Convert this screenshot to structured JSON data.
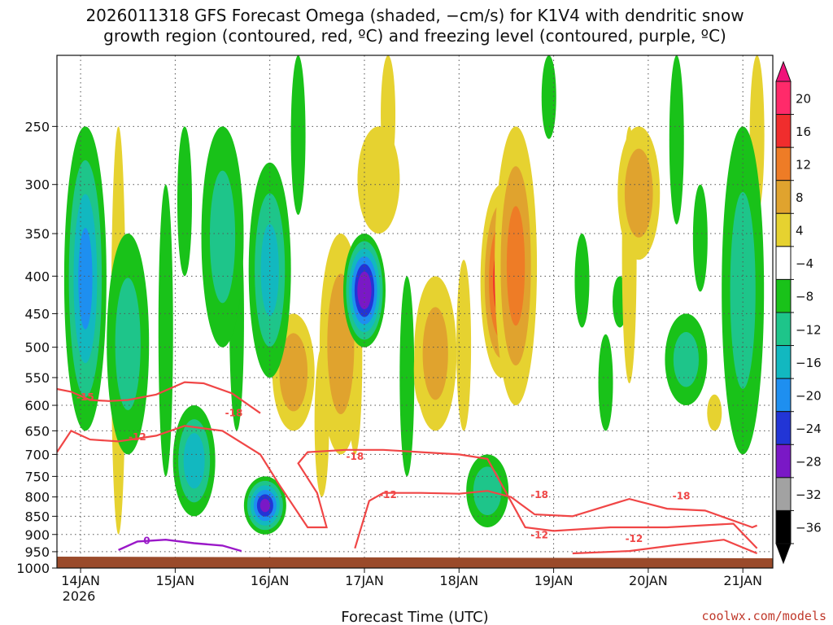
{
  "chart_data": {
    "type": "heatmap",
    "title_line1": "2026011318 GFS Forecast Omega (shaded, −cm/s) for K1V4 with dendritic snow",
    "title_line2": "growth region (contoured, red, ºC) and freezing level (contoured, purple, ºC)",
    "xlabel": "Forecast Time (UTC)",
    "credit": "coolwx.com/models",
    "x_ticks": [
      "14JAN",
      "15JAN",
      "16JAN",
      "17JAN",
      "18JAN",
      "19JAN",
      "20JAN",
      "21JAN"
    ],
    "x_tick_year": "2026",
    "y_scale": "log-pressure",
    "y_ticks": [
      "250",
      "300",
      "350",
      "400",
      "450",
      "500",
      "550",
      "600",
      "650",
      "700",
      "750",
      "800",
      "850",
      "900",
      "950",
      "1000"
    ],
    "ylim": [
      1000,
      200
    ],
    "grid": true,
    "colorbar": {
      "levels": [
        "20",
        "16",
        "12",
        "8",
        "4",
        "−4",
        "−8",
        "−12",
        "−16",
        "−20",
        "−24",
        "−28",
        "−32",
        "−36"
      ],
      "colors": [
        "#ff2a6a",
        "#f02d2d",
        "#ee7c26",
        "#e0a32e",
        "#e6d230",
        "#ffffff",
        "#19c219",
        "#1ec58a",
        "#12b8c0",
        "#1e8ff0",
        "#2235d6",
        "#7a18c6",
        "#a2a2a2",
        "#000000"
      ],
      "top_arrow_color": "#f0137a",
      "bottom_arrow_color": "#000000"
    },
    "contour_labels": {
      "red": [
        "-15",
        "-18",
        "-12",
        "-18",
        "-12",
        "-18",
        "-18",
        "-12",
        "-12"
      ],
      "purple": [
        "0"
      ]
    },
    "terrain_color": "#9a4a2a",
    "positive_cores": [
      {
        "day": 16.25,
        "p_top": 450,
        "p_bot": 650,
        "value": 10
      },
      {
        "day": 16.75,
        "p_top": 350,
        "p_bot": 700,
        "value": 9
      },
      {
        "day": 17.75,
        "p_top": 400,
        "p_bot": 650,
        "value": 8
      },
      {
        "day": 18.45,
        "p_top": 300,
        "p_bot": 550,
        "value": 18
      },
      {
        "day": 18.6,
        "p_top": 250,
        "p_bot": 600,
        "value": 12
      },
      {
        "day": 19.9,
        "p_top": 250,
        "p_bot": 380,
        "value": 10
      },
      {
        "day": 17.15,
        "p_top": 250,
        "p_bot": 350,
        "value": 6
      }
    ],
    "negative_cores": [
      {
        "day": 14.05,
        "p_top": 250,
        "p_bot": 650,
        "value": -16
      },
      {
        "day": 15.2,
        "p_top": 600,
        "p_bot": 850,
        "value": -14
      },
      {
        "day": 15.95,
        "p_top": 750,
        "p_bot": 900,
        "value": -24
      },
      {
        "day": 16.0,
        "p_top": 280,
        "p_bot": 550,
        "value": -12
      },
      {
        "day": 17.0,
        "p_top": 350,
        "p_bot": 500,
        "value": -28
      },
      {
        "day": 18.3,
        "p_top": 700,
        "p_bot": 880,
        "value": -10
      },
      {
        "day": 14.5,
        "p_top": 350,
        "p_bot": 700,
        "value": -8
      },
      {
        "day": 15.5,
        "p_top": 250,
        "p_bot": 500,
        "value": -8
      },
      {
        "day": 20.4,
        "p_top": 450,
        "p_bot": 600,
        "value": -8
      },
      {
        "day": 21.0,
        "p_top": 250,
        "p_bot": 700,
        "value": -8
      }
    ]
  }
}
